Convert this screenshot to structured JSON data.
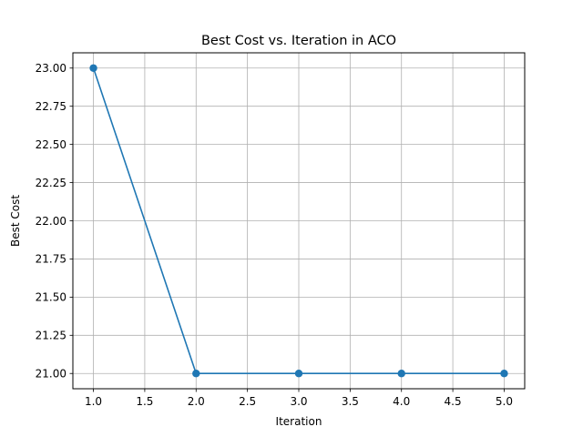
{
  "chart_data": {
    "type": "line",
    "title": "Best Cost vs. Iteration in ACO",
    "xlabel": "Iteration",
    "ylabel": "Best Cost",
    "xlim": [
      0.8,
      5.2
    ],
    "ylim": [
      20.9,
      23.1
    ],
    "grid": true,
    "xticks": [
      1.0,
      1.5,
      2.0,
      2.5,
      3.0,
      3.5,
      4.0,
      4.5,
      5.0
    ],
    "xtick_labels": [
      "1.0",
      "1.5",
      "2.0",
      "2.5",
      "3.0",
      "3.5",
      "4.0",
      "4.5",
      "5.0"
    ],
    "yticks": [
      21.0,
      21.25,
      21.5,
      21.75,
      22.0,
      22.25,
      22.5,
      22.75,
      23.0
    ],
    "ytick_labels": [
      "21.00",
      "21.25",
      "21.50",
      "21.75",
      "22.00",
      "22.25",
      "22.50",
      "22.75",
      "23.00"
    ],
    "series": [
      {
        "x": [
          1,
          2,
          3,
          4,
          5
        ],
        "y": [
          23,
          21,
          21,
          21,
          21
        ],
        "color": "#1f77b4",
        "marker": "circle"
      }
    ]
  }
}
